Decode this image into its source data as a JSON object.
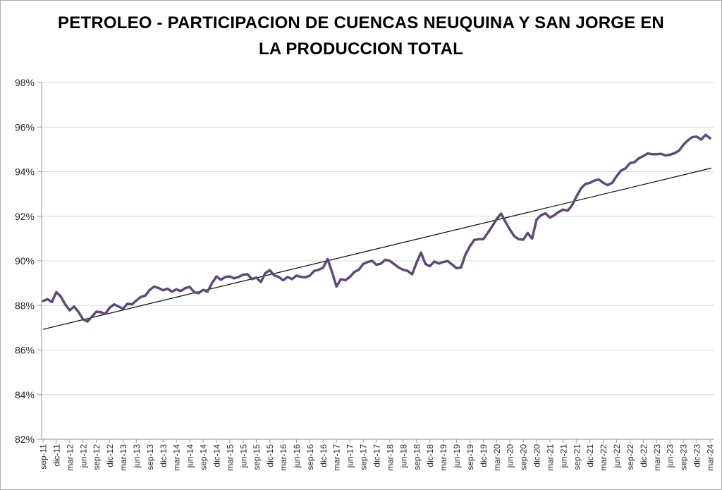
{
  "title": "PETROLEO - PARTICIPACION DE CUENCAS NEUQUINA Y SAN JORGE EN LA PRODUCCION TOTAL",
  "y_axis": {
    "labels": [
      "98%",
      "96%",
      "94%",
      "92%",
      "90%",
      "88%",
      "86%",
      "84%",
      "82%"
    ],
    "values": [
      98,
      96,
      94,
      92,
      90,
      88,
      86,
      84,
      82
    ]
  },
  "x_axis": {
    "step_months": 3,
    "labels": [
      "sep-11",
      "dic-11",
      "mar-12",
      "jun-12",
      "sep-12",
      "dic-12",
      "mar-13",
      "jun-13",
      "sep-13",
      "dic-13",
      "mar-14",
      "jun-14",
      "sep-14",
      "dic-14",
      "mar-15",
      "jun-15",
      "sep-15",
      "dic-15",
      "mar-16",
      "jun-16",
      "sep-16",
      "dic-16",
      "mar-17",
      "jun-17",
      "sep-17",
      "dic-17",
      "mar-18",
      "jun-18",
      "sep-18",
      "dic-18",
      "mar-19",
      "jun-19",
      "sep-19",
      "dic-19",
      "mar-20",
      "jun-20",
      "sep-20",
      "dic-20",
      "mar-21",
      "jun-21",
      "sep-21",
      "dic-21",
      "mar-22",
      "jun-22",
      "sep-22",
      "dic-22",
      "mar-23",
      "jun-23",
      "sep-23",
      "dic-23",
      "mar-24"
    ]
  },
  "chart_data": {
    "type": "line",
    "title": "PETROLEO - PARTICIPACION DE CUENCAS NEUQUINA Y SAN JORGE EN LA PRODUCCION TOTAL",
    "frequency": "monthly",
    "x_start": "sep-11",
    "x_end": "mar-24",
    "ylim": [
      82,
      98
    ],
    "y_tick_step": 2,
    "grid": true,
    "legend": false,
    "months": [
      "sep-11",
      "oct-11",
      "nov-11",
      "dic-11",
      "ene-12",
      "feb-12",
      "mar-12",
      "abr-12",
      "may-12",
      "jun-12",
      "jul-12",
      "ago-12",
      "sep-12",
      "oct-12",
      "nov-12",
      "dic-12",
      "ene-13",
      "feb-13",
      "mar-13",
      "abr-13",
      "may-13",
      "jun-13",
      "jul-13",
      "ago-13",
      "sep-13",
      "oct-13",
      "nov-13",
      "dic-13",
      "ene-14",
      "feb-14",
      "mar-14",
      "abr-14",
      "may-14",
      "jun-14",
      "jul-14",
      "ago-14",
      "sep-14",
      "oct-14",
      "nov-14",
      "dic-14",
      "ene-15",
      "feb-15",
      "mar-15",
      "abr-15",
      "may-15",
      "jun-15",
      "jul-15",
      "ago-15",
      "sep-15",
      "oct-15",
      "nov-15",
      "dic-15",
      "ene-16",
      "feb-16",
      "mar-16",
      "abr-16",
      "may-16",
      "jun-16",
      "jul-16",
      "ago-16",
      "sep-16",
      "oct-16",
      "nov-16",
      "dic-16",
      "ene-17",
      "feb-17",
      "mar-17",
      "abr-17",
      "may-17",
      "jun-17",
      "jul-17",
      "ago-17",
      "sep-17",
      "oct-17",
      "nov-17",
      "dic-17",
      "ene-18",
      "feb-18",
      "mar-18",
      "abr-18",
      "may-18",
      "jun-18",
      "jul-18",
      "ago-18",
      "sep-18",
      "oct-18",
      "nov-18",
      "dic-18",
      "ene-19",
      "feb-19",
      "mar-19",
      "abr-19",
      "may-19",
      "jun-19",
      "jul-19",
      "ago-19",
      "sep-19",
      "oct-19",
      "nov-19",
      "dic-19",
      "ene-20",
      "feb-20",
      "mar-20",
      "abr-20",
      "may-20",
      "jun-20",
      "jul-20",
      "ago-20",
      "sep-20",
      "oct-20",
      "nov-20",
      "dic-20",
      "ene-21",
      "feb-21",
      "mar-21",
      "abr-21",
      "may-21",
      "jun-21",
      "jul-21",
      "ago-21",
      "sep-21",
      "oct-21",
      "nov-21",
      "dic-21",
      "ene-22",
      "feb-22",
      "mar-22",
      "abr-22",
      "may-22",
      "jun-22",
      "jul-22",
      "ago-22",
      "sep-22",
      "oct-22",
      "nov-22",
      "dic-22",
      "ene-23",
      "feb-23",
      "mar-23",
      "abr-23",
      "may-23",
      "jun-23",
      "jul-23",
      "ago-23",
      "sep-23",
      "oct-23",
      "nov-23",
      "dic-23",
      "ene-24",
      "feb-24",
      "mar-24"
    ],
    "values": [
      88.2,
      88.28,
      88.15,
      88.6,
      88.4,
      88.05,
      87.78,
      87.95,
      87.7,
      87.38,
      87.28,
      87.5,
      87.72,
      87.7,
      87.62,
      87.9,
      88.05,
      87.95,
      87.85,
      88.08,
      88.05,
      88.22,
      88.38,
      88.44,
      88.7,
      88.85,
      88.78,
      88.68,
      88.75,
      88.62,
      88.72,
      88.65,
      88.78,
      88.83,
      88.6,
      88.55,
      88.7,
      88.62,
      89.0,
      89.3,
      89.15,
      89.28,
      89.3,
      89.22,
      89.28,
      89.38,
      89.4,
      89.18,
      89.25,
      89.05,
      89.45,
      89.58,
      89.35,
      89.28,
      89.13,
      89.28,
      89.18,
      89.34,
      89.28,
      89.26,
      89.34,
      89.55,
      89.6,
      89.7,
      90.08,
      89.5,
      88.85,
      89.18,
      89.13,
      89.28,
      89.5,
      89.6,
      89.86,
      89.95,
      90.0,
      89.82,
      89.88,
      90.05,
      90.0,
      89.85,
      89.7,
      89.6,
      89.55,
      89.4,
      89.92,
      90.37,
      89.86,
      89.76,
      89.97,
      89.88,
      89.95,
      89.99,
      89.84,
      89.67,
      89.7,
      90.28,
      90.65,
      90.94,
      90.97,
      90.97,
      91.25,
      91.55,
      91.87,
      92.12,
      91.75,
      91.4,
      91.1,
      90.97,
      90.95,
      91.25,
      91.0,
      91.85,
      92.05,
      92.13,
      91.94,
      92.05,
      92.2,
      92.3,
      92.25,
      92.5,
      92.9,
      93.25,
      93.45,
      93.5,
      93.6,
      93.65,
      93.5,
      93.4,
      93.5,
      93.8,
      94.05,
      94.15,
      94.38,
      94.43,
      94.6,
      94.7,
      94.82,
      94.78,
      94.78,
      94.8,
      94.73,
      94.76,
      94.83,
      94.94,
      95.2,
      95.4,
      95.55,
      95.57,
      95.44,
      95.65,
      95.5
    ],
    "trendline": {
      "start_value": 86.93,
      "end_value": 94.16
    },
    "colors": {
      "series": "#5f497a",
      "trendline": "#1a1a1a",
      "gridline": "#d9d9d9",
      "axis": "#a6a6a6",
      "label": "#262626",
      "title": "#000000",
      "border": "#ababab",
      "background": "#ffffff"
    }
  }
}
